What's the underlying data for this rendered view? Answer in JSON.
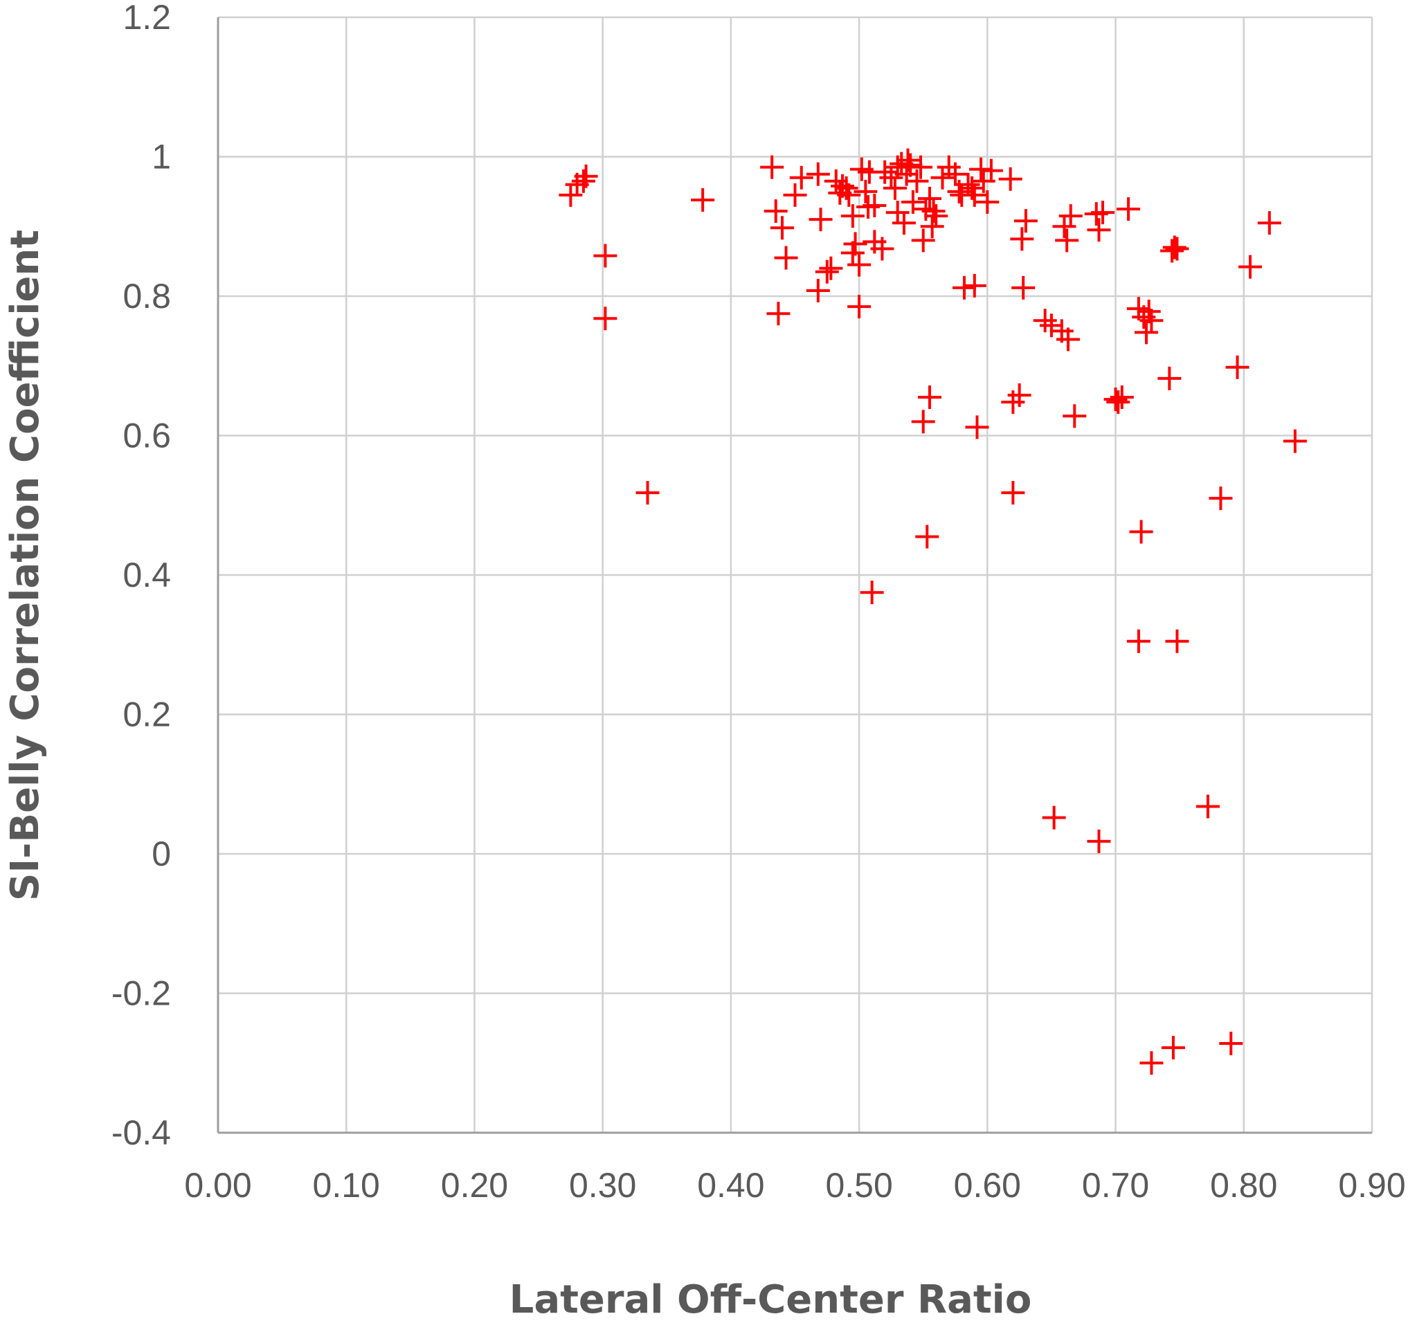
{
  "chart_data": {
    "type": "scatter",
    "title": "",
    "xlabel": "Lateral Off-Center Ratio",
    "ylabel": "SI-Belly Correlation Coefficient",
    "xlim": [
      0,
      0.9
    ],
    "ylim": [
      -0.4,
      1.2
    ],
    "x_ticks": [
      "0.00",
      "0.10",
      "0.20",
      "0.30",
      "0.40",
      "0.50",
      "0.60",
      "0.70",
      "0.80",
      "0.90"
    ],
    "y_ticks": [
      "1.2",
      "1",
      "0.8",
      "0.6",
      "0.4",
      "0.2",
      "0",
      "-0.2",
      "-0.4"
    ],
    "grid": true,
    "marker": "plus",
    "marker_color": "#ff0000",
    "series": [
      {
        "points": [
          [
            0.275,
            0.945
          ],
          [
            0.28,
            0.96
          ],
          [
            0.285,
            0.965
          ],
          [
            0.287,
            0.972
          ],
          [
            0.302,
            0.858
          ],
          [
            0.302,
            0.768
          ],
          [
            0.335,
            0.518
          ],
          [
            0.378,
            0.938
          ],
          [
            0.432,
            0.985
          ],
          [
            0.435,
            0.922
          ],
          [
            0.437,
            0.775
          ],
          [
            0.44,
            0.898
          ],
          [
            0.443,
            0.855
          ],
          [
            0.45,
            0.945
          ],
          [
            0.455,
            0.97
          ],
          [
            0.468,
            0.975
          ],
          [
            0.468,
            0.808
          ],
          [
            0.47,
            0.91
          ],
          [
            0.475,
            0.835
          ],
          [
            0.478,
            0.84
          ],
          [
            0.482,
            0.965
          ],
          [
            0.485,
            0.948
          ],
          [
            0.487,
            0.958
          ],
          [
            0.49,
            0.955
          ],
          [
            0.492,
            0.945
          ],
          [
            0.495,
            0.915
          ],
          [
            0.495,
            0.862
          ],
          [
            0.497,
            0.875
          ],
          [
            0.5,
            0.845
          ],
          [
            0.5,
            0.785
          ],
          [
            0.502,
            0.982
          ],
          [
            0.505,
            0.95
          ],
          [
            0.507,
            0.928
          ],
          [
            0.508,
            0.978
          ],
          [
            0.51,
            0.375
          ],
          [
            0.512,
            0.93
          ],
          [
            0.512,
            0.878
          ],
          [
            0.518,
            0.868
          ],
          [
            0.52,
            0.978
          ],
          [
            0.525,
            0.97
          ],
          [
            0.528,
            0.955
          ],
          [
            0.53,
            0.92
          ],
          [
            0.53,
            0.985
          ],
          [
            0.533,
            0.99
          ],
          [
            0.535,
            0.905
          ],
          [
            0.537,
            0.975
          ],
          [
            0.538,
            0.995
          ],
          [
            0.54,
            0.988
          ],
          [
            0.542,
            0.935
          ],
          [
            0.545,
            0.965
          ],
          [
            0.548,
            0.985
          ],
          [
            0.55,
            0.88
          ],
          [
            0.55,
            0.62
          ],
          [
            0.552,
            0.925
          ],
          [
            0.553,
            0.455
          ],
          [
            0.555,
            0.655
          ],
          [
            0.555,
            0.94
          ],
          [
            0.557,
            0.9
          ],
          [
            0.558,
            0.922
          ],
          [
            0.56,
            0.915
          ],
          [
            0.565,
            0.97
          ],
          [
            0.57,
            0.985
          ],
          [
            0.575,
            0.975
          ],
          [
            0.578,
            0.95
          ],
          [
            0.58,
            0.945
          ],
          [
            0.582,
            0.812
          ],
          [
            0.585,
            0.96
          ],
          [
            0.588,
            0.955
          ],
          [
            0.59,
            0.945
          ],
          [
            0.59,
            0.815
          ],
          [
            0.592,
            0.612
          ],
          [
            0.595,
            0.982
          ],
          [
            0.597,
            0.965
          ],
          [
            0.6,
            0.935
          ],
          [
            0.603,
            0.98
          ],
          [
            0.618,
            0.968
          ],
          [
            0.62,
            0.648
          ],
          [
            0.62,
            0.518
          ],
          [
            0.625,
            0.658
          ],
          [
            0.627,
            0.882
          ],
          [
            0.628,
            0.812
          ],
          [
            0.63,
            0.908
          ],
          [
            0.645,
            0.765
          ],
          [
            0.65,
            0.758
          ],
          [
            0.652,
            0.052
          ],
          [
            0.658,
            0.75
          ],
          [
            0.66,
            0.9
          ],
          [
            0.662,
            0.88
          ],
          [
            0.663,
            0.738
          ],
          [
            0.665,
            0.915
          ],
          [
            0.668,
            0.628
          ],
          [
            0.685,
            0.918
          ],
          [
            0.687,
            0.895
          ],
          [
            0.687,
            0.018
          ],
          [
            0.69,
            0.92
          ],
          [
            0.7,
            0.652
          ],
          [
            0.702,
            0.648
          ],
          [
            0.705,
            0.655
          ],
          [
            0.71,
            0.925
          ],
          [
            0.718,
            0.782
          ],
          [
            0.718,
            0.305
          ],
          [
            0.72,
            0.462
          ],
          [
            0.722,
            0.77
          ],
          [
            0.724,
            0.748
          ],
          [
            0.726,
            0.778
          ],
          [
            0.728,
            0.765
          ],
          [
            0.728,
            -0.3
          ],
          [
            0.742,
            0.682
          ],
          [
            0.744,
            0.865
          ],
          [
            0.746,
            0.87
          ],
          [
            0.748,
            0.305
          ],
          [
            0.745,
            -0.278
          ],
          [
            0.748,
            0.868
          ],
          [
            0.772,
            0.068
          ],
          [
            0.782,
            0.51
          ],
          [
            0.79,
            -0.272
          ],
          [
            0.795,
            0.698
          ],
          [
            0.805,
            0.842
          ],
          [
            0.82,
            0.905
          ],
          [
            0.84,
            0.592
          ]
        ]
      }
    ]
  }
}
